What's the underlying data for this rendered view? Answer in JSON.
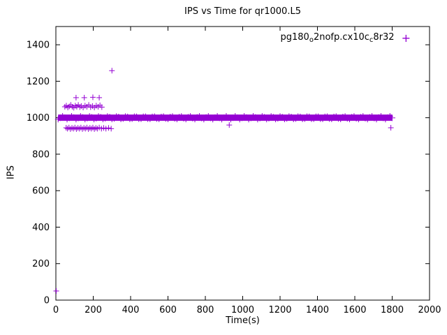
{
  "chart_data": {
    "type": "scatter",
    "title": "IPS vs Time for qr1000.L5",
    "xlabel": "Time(s)",
    "ylabel": "IPS",
    "xlim": [
      0,
      2000
    ],
    "ylim": [
      0,
      1500
    ],
    "xticks": [
      0,
      200,
      400,
      600,
      800,
      1000,
      1200,
      1400,
      1600,
      1800,
      2000
    ],
    "yticks": [
      0,
      200,
      400,
      600,
      800,
      1000,
      1200,
      1400
    ],
    "grid": false,
    "legend_position": "top-right-inside",
    "axis_color": "#000000",
    "background_color": "#ffffff",
    "series": [
      {
        "name": "pg180_o2nofp.cx10c_c8r32",
        "label_parts": [
          {
            "text": "pg180",
            "sub": false
          },
          {
            "text": "o",
            "sub": true
          },
          {
            "text": "2nofp.cx10c",
            "sub": false
          },
          {
            "text": "c",
            "sub": true
          },
          {
            "text": "8r32",
            "sub": false
          }
        ],
        "marker": "plus",
        "color": "#9400D3",
        "band": {
          "y_center": 1000,
          "y_spread": 20,
          "x_start": 12,
          "x_end": 1800,
          "marker_step": 12
        },
        "points": [
          [
            2,
            50
          ],
          [
            55,
            945
          ],
          [
            62,
            940
          ],
          [
            70,
            946
          ],
          [
            78,
            938
          ],
          [
            86,
            944
          ],
          [
            94,
            940
          ],
          [
            102,
            946
          ],
          [
            110,
            938
          ],
          [
            118,
            944
          ],
          [
            126,
            940
          ],
          [
            134,
            946
          ],
          [
            142,
            938
          ],
          [
            150,
            944
          ],
          [
            158,
            940
          ],
          [
            166,
            946
          ],
          [
            174,
            938
          ],
          [
            182,
            944
          ],
          [
            190,
            940
          ],
          [
            198,
            946
          ],
          [
            206,
            938
          ],
          [
            214,
            944
          ],
          [
            222,
            940
          ],
          [
            232,
            946
          ],
          [
            244,
            940
          ],
          [
            256,
            944
          ],
          [
            268,
            940
          ],
          [
            282,
            944
          ],
          [
            296,
            940
          ],
          [
            48,
            1060
          ],
          [
            56,
            1066
          ],
          [
            64,
            1056
          ],
          [
            72,
            1062
          ],
          [
            80,
            1070
          ],
          [
            88,
            1060
          ],
          [
            96,
            1055
          ],
          [
            104,
            1066
          ],
          [
            112,
            1060
          ],
          [
            120,
            1070
          ],
          [
            128,
            1058
          ],
          [
            136,
            1064
          ],
          [
            146,
            1056
          ],
          [
            156,
            1066
          ],
          [
            166,
            1060
          ],
          [
            176,
            1070
          ],
          [
            186,
            1058
          ],
          [
            196,
            1064
          ],
          [
            206,
            1056
          ],
          [
            216,
            1066
          ],
          [
            226,
            1060
          ],
          [
            236,
            1068
          ],
          [
            246,
            1058
          ],
          [
            108,
            1110
          ],
          [
            152,
            1110
          ],
          [
            198,
            1112
          ],
          [
            232,
            1110
          ],
          [
            300,
            1258
          ],
          [
            928,
            960
          ],
          [
            1793,
            945
          ]
        ]
      }
    ]
  }
}
